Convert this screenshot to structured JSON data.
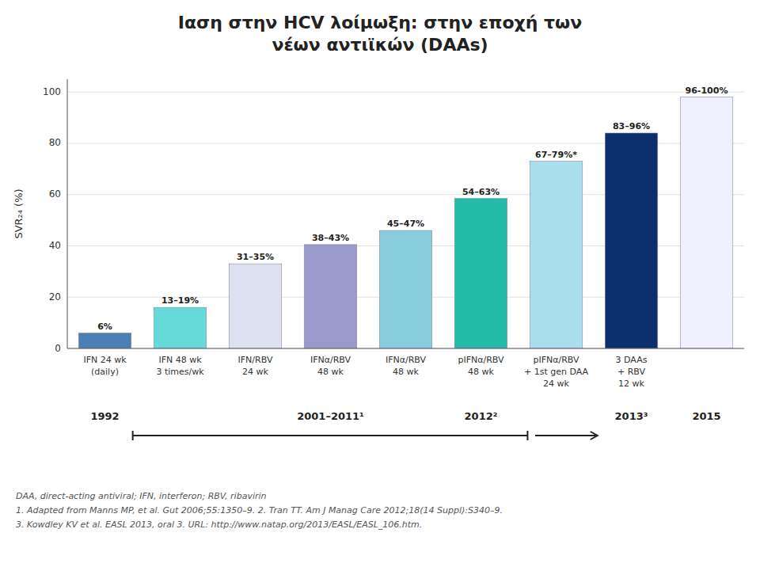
{
  "chart_data": {
    "type": "bar",
    "title": "Ιαση στην HCV λοίμωξη: στην εποχή των\nνέων αντιϊκών (DAAs)",
    "ylabel": "SVR₂₄ (%)",
    "categories": [
      "IFN 24 wk\n(daily)",
      "IFN 48 wk\n3 times/wk",
      "IFN/RBV\n24 wk",
      "IFNα/RBV\n48 wk",
      "IFNα/RBV\n48 wk",
      "pIFNα/RBV\n48 wk",
      "pIFNα/RBV\n+ 1st gen DAA\n24 wk",
      "3 DAAs\n+ RBV\n12 wk",
      null
    ],
    "values": [
      6,
      16,
      33,
      40.5,
      46,
      58.5,
      73,
      84,
      98
    ],
    "value_labels": [
      "6%",
      "13–19%",
      "31–35%",
      "38–43%",
      "45–47%",
      "54–63%",
      "67–79%*",
      "83–96%",
      "96-100%"
    ],
    "colors": [
      "#4a7fb5",
      "#66d9d9",
      "#dde0ee",
      "#9999cc",
      "#88ccdd",
      "#22bbaa",
      "#aaddee",
      "#0d2f6e",
      "#f0f0ff"
    ],
    "data_labels": true,
    "ylim": [
      0,
      105
    ],
    "yticks": [
      0,
      20,
      40,
      60,
      80,
      100
    ],
    "grid": true,
    "annotations": [
      {
        "text": "1992",
        "x": 0
      },
      {
        "text": "2001–2011¹",
        "x": 3
      },
      {
        "text": "2012²",
        "x": 5
      },
      {
        "text": "2013³",
        "x": 7
      },
      {
        "text": "2015",
        "x": 8
      }
    ],
    "footnotes": [
      "DAA, direct-acting antiviral; IFN, interferon; RBV, ribavirin",
      "1. Adapted from Manns MP, et al. Gut 2006;55:1350–9.  2. Tran TT. Am J Manag Care 2012;18(14 Suppl):S340–9.",
      "3. Kowdley KV et al. EASL 2013, oral 3. URL: http://www.natap.org/2013/EASL/EASL_106.htm."
    ]
  }
}
